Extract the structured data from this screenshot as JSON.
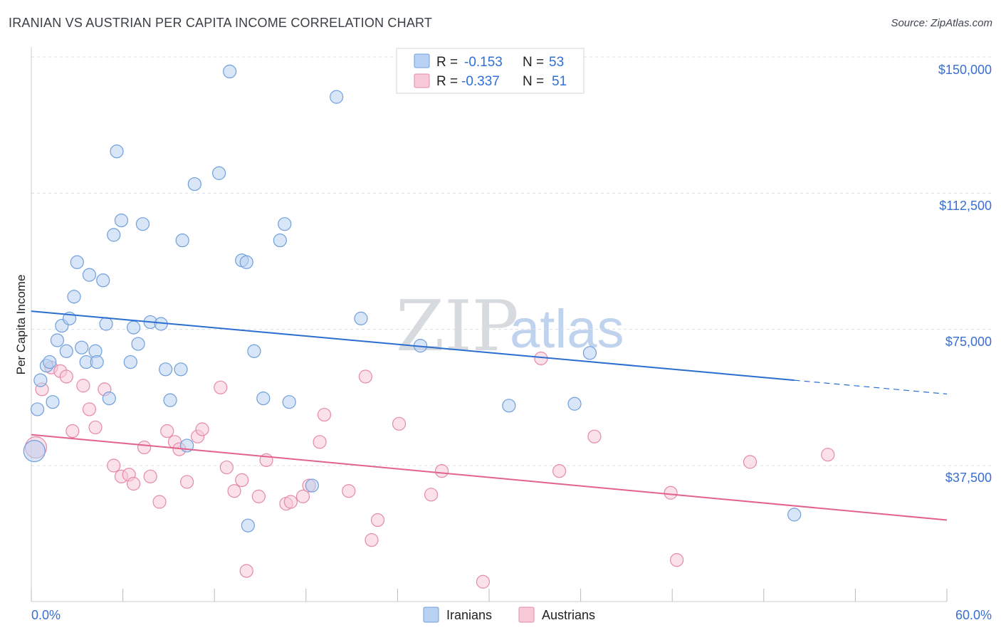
{
  "header": {
    "title": "IRANIAN VS AUSTRIAN PER CAPITA INCOME CORRELATION CHART",
    "source": "Source: ZipAtlas.com"
  },
  "watermark": {
    "zip": "ZIP",
    "atlas": "atlas"
  },
  "legend": {
    "r_label": "R =",
    "n_label": "N =",
    "iranians": {
      "r": "-0.153",
      "n": "53"
    },
    "austrians": {
      "r": "-0.337",
      "n": "51"
    }
  },
  "bottom_legend": {
    "iranians": "Iranians",
    "austrians": "Austrians"
  },
  "colors": {
    "iranians_fill": "#b9d2f3",
    "iranians_stroke": "#6f9fdb",
    "iranians_line": "#2a6fd0",
    "austrians_fill": "#f8c9d7",
    "austrians_stroke": "#e58aa8",
    "austrians_line": "#e2628d",
    "axis_label": "#3a6fd0",
    "grid": "#d9dde2"
  },
  "chart_data": {
    "type": "scatter",
    "title": "IRANIAN VS AUSTRIAN PER CAPITA INCOME CORRELATION CHART",
    "xlabel": "",
    "ylabel": "Per Capita Income",
    "xlim": [
      0,
      60
    ],
    "ylim": [
      0,
      155000
    ],
    "x_tick_labels": [
      "0.0%",
      "60.0%"
    ],
    "y_ticks": [
      37500,
      75000,
      112500,
      150000
    ],
    "y_tick_labels": [
      "$37,500",
      "$75,000",
      "$112,500",
      "$150,000"
    ],
    "grid": true,
    "legend_position": "top-center",
    "series": [
      {
        "name": "Iranians",
        "r": -0.153,
        "n": 53,
        "trend": {
          "x0": 0,
          "y0": 80000,
          "x1": 50,
          "y1": 61000,
          "dashed_to_x": 60,
          "dashed_to_y": 57200
        },
        "points": [
          [
            0.2,
            41500
          ],
          [
            0.4,
            53000
          ],
          [
            0.6,
            61000
          ],
          [
            1.0,
            65000
          ],
          [
            1.2,
            66000
          ],
          [
            1.4,
            55000
          ],
          [
            1.7,
            72000
          ],
          [
            2.0,
            76000
          ],
          [
            2.3,
            69000
          ],
          [
            2.5,
            78000
          ],
          [
            2.8,
            84000
          ],
          [
            3.0,
            93500
          ],
          [
            3.3,
            70000
          ],
          [
            3.6,
            66000
          ],
          [
            3.8,
            90000
          ],
          [
            4.2,
            69000
          ],
          [
            4.3,
            66000
          ],
          [
            4.7,
            88500
          ],
          [
            4.9,
            76500
          ],
          [
            5.1,
            56000
          ],
          [
            5.4,
            101000
          ],
          [
            5.6,
            124000
          ],
          [
            5.9,
            105000
          ],
          [
            6.5,
            66000
          ],
          [
            6.7,
            75500
          ],
          [
            7.0,
            71000
          ],
          [
            7.3,
            104000
          ],
          [
            7.8,
            77000
          ],
          [
            8.5,
            76500
          ],
          [
            8.8,
            64000
          ],
          [
            9.1,
            55500
          ],
          [
            9.8,
            64000
          ],
          [
            9.9,
            99500
          ],
          [
            10.2,
            43000
          ],
          [
            10.7,
            115000
          ],
          [
            12.3,
            118000
          ],
          [
            13.0,
            146000
          ],
          [
            13.8,
            94000
          ],
          [
            14.1,
            93500
          ],
          [
            14.2,
            21000
          ],
          [
            14.6,
            69000
          ],
          [
            15.2,
            56000
          ],
          [
            16.3,
            99500
          ],
          [
            16.6,
            104000
          ],
          [
            16.9,
            55000
          ],
          [
            18.4,
            32000
          ],
          [
            20.0,
            139000
          ],
          [
            21.6,
            78000
          ],
          [
            25.5,
            70500
          ],
          [
            31.3,
            54000
          ],
          [
            35.6,
            54500
          ],
          [
            36.6,
            68500
          ],
          [
            50.0,
            24000
          ]
        ]
      },
      {
        "name": "Austrians",
        "r": -0.337,
        "n": 51,
        "trend": {
          "x0": 0,
          "y0": 46000,
          "x1": 60,
          "y1": 22500
        },
        "points": [
          [
            0.3,
            42500
          ],
          [
            0.7,
            58500
          ],
          [
            1.3,
            64500
          ],
          [
            1.9,
            63500
          ],
          [
            2.3,
            62000
          ],
          [
            2.7,
            47000
          ],
          [
            3.4,
            59500
          ],
          [
            3.8,
            53000
          ],
          [
            4.2,
            48000
          ],
          [
            4.8,
            58500
          ],
          [
            5.4,
            37500
          ],
          [
            5.9,
            34500
          ],
          [
            6.4,
            35000
          ],
          [
            6.7,
            32500
          ],
          [
            7.4,
            42500
          ],
          [
            7.8,
            34500
          ],
          [
            8.4,
            27500
          ],
          [
            8.9,
            47000
          ],
          [
            9.4,
            44000
          ],
          [
            9.7,
            42000
          ],
          [
            10.2,
            33000
          ],
          [
            10.9,
            45500
          ],
          [
            11.2,
            47500
          ],
          [
            12.4,
            59000
          ],
          [
            12.8,
            37000
          ],
          [
            13.3,
            30500
          ],
          [
            13.8,
            33500
          ],
          [
            14.1,
            8500
          ],
          [
            14.9,
            29000
          ],
          [
            15.4,
            39000
          ],
          [
            16.7,
            27000
          ],
          [
            17.0,
            27500
          ],
          [
            17.8,
            29000
          ],
          [
            18.2,
            32000
          ],
          [
            18.9,
            44000
          ],
          [
            19.2,
            51500
          ],
          [
            20.8,
            30500
          ],
          [
            21.9,
            62000
          ],
          [
            22.3,
            17000
          ],
          [
            22.7,
            22500
          ],
          [
            24.1,
            49000
          ],
          [
            26.2,
            29500
          ],
          [
            26.9,
            36000
          ],
          [
            29.6,
            5500
          ],
          [
            33.4,
            67000
          ],
          [
            34.6,
            36000
          ],
          [
            36.9,
            45500
          ],
          [
            41.9,
            30000
          ],
          [
            42.3,
            11500
          ],
          [
            47.1,
            38500
          ],
          [
            52.2,
            40500
          ]
        ]
      }
    ]
  }
}
